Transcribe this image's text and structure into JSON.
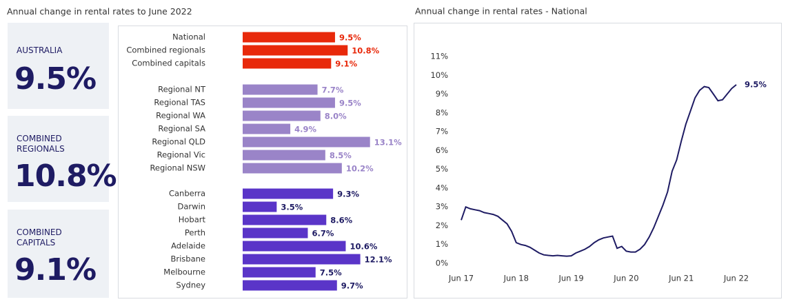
{
  "title": "Annual change in rental rates to June 2022",
  "cards": [
    {
      "label": "AUSTRALIA",
      "value": "9.5%"
    },
    {
      "label": "COMBINED\nREGIONALS",
      "value": "10.8%"
    },
    {
      "label": "COMBINED\nCAPITALS",
      "value": "9.1%"
    }
  ],
  "chart_data": [
    {
      "type": "bar",
      "orientation": "horizontal",
      "groups": [
        {
          "color": "#e8290b",
          "label_color": "#e8290b",
          "categories": [
            "National",
            "Combined regionals",
            "Combined capitals"
          ],
          "values": [
            9.5,
            10.8,
            9.1
          ],
          "value_labels": [
            "9.5%",
            "10.8%",
            "9.1%"
          ]
        },
        {
          "color": "#9a84c8",
          "label_color": "#9a84c8",
          "categories": [
            "Regional NT",
            "Regional TAS",
            "Regional WA",
            "Regional SA",
            "Regional QLD",
            "Regional Vic",
            "Regional NSW"
          ],
          "values": [
            7.7,
            9.5,
            8.0,
            4.9,
            13.1,
            8.5,
            10.2
          ],
          "value_labels": [
            "7.7%",
            "9.5%",
            "8.0%",
            "4.9%",
            "13.1%",
            "8.5%",
            "10.2%"
          ]
        },
        {
          "color": "#5a35c8",
          "label_color": "#1e1b63",
          "categories": [
            "Canberra",
            "Darwin",
            "Hobart",
            "Perth",
            "Adelaide",
            "Brisbane",
            "Melbourne",
            "Sydney"
          ],
          "values": [
            9.3,
            3.5,
            8.6,
            6.7,
            10.6,
            12.1,
            7.5,
            9.7
          ],
          "value_labels": [
            "9.3%",
            "3.5%",
            "8.6%",
            "6.7%",
            "10.6%",
            "12.1%",
            "7.5%",
            "9.7%"
          ]
        }
      ]
    },
    {
      "type": "line",
      "title": "Annual change in rental rates - National",
      "color": "#1e1b63",
      "x": [
        "Jun 17",
        "Jul 17",
        "Aug 17",
        "Sep 17",
        "Oct 17",
        "Nov 17",
        "Dec 17",
        "Jan 18",
        "Feb 18",
        "Mar 18",
        "Apr 18",
        "May 18",
        "Jun 18",
        "Jul 18",
        "Aug 18",
        "Sep 18",
        "Oct 18",
        "Nov 18",
        "Dec 18",
        "Jan 19",
        "Feb 19",
        "Mar 19",
        "Apr 19",
        "May 19",
        "Jun 19",
        "Jul 19",
        "Aug 19",
        "Sep 19",
        "Oct 19",
        "Nov 19",
        "Dec 19",
        "Jan 20",
        "Feb 20",
        "Mar 20",
        "Apr 20",
        "May 20",
        "Jun 20",
        "Jul 20",
        "Aug 20",
        "Sep 20",
        "Oct 20",
        "Nov 20",
        "Dec 20",
        "Jan 21",
        "Feb 21",
        "Mar 21",
        "Apr 21",
        "May 21",
        "Jun 21",
        "Jul 21",
        "Aug 21",
        "Sep 21",
        "Oct 21",
        "Nov 21",
        "Dec 21",
        "Jan 22",
        "Feb 22",
        "Mar 22",
        "Apr 22",
        "May 22",
        "Jun 22"
      ],
      "values": [
        2.3,
        3.0,
        2.9,
        2.85,
        2.8,
        2.7,
        2.65,
        2.6,
        2.5,
        2.3,
        2.1,
        1.7,
        1.1,
        1.0,
        0.95,
        0.85,
        0.7,
        0.55,
        0.45,
        0.42,
        0.4,
        0.42,
        0.4,
        0.38,
        0.4,
        0.55,
        0.65,
        0.75,
        0.9,
        1.1,
        1.25,
        1.35,
        1.4,
        1.45,
        0.8,
        0.9,
        0.65,
        0.6,
        0.6,
        0.75,
        1.0,
        1.4,
        1.9,
        2.5,
        3.1,
        3.8,
        4.9,
        5.5,
        6.5,
        7.4,
        8.1,
        8.8,
        9.2,
        9.4,
        9.35,
        9.0,
        8.65,
        8.7,
        9.0,
        9.3,
        9.5
      ],
      "end_label": "9.5%",
      "xticks": [
        "Jun 17",
        "Jun 18",
        "Jun 19",
        "Jun 20",
        "Jun 21",
        "Jun 22"
      ],
      "ylim": [
        0,
        11
      ],
      "yticks": [
        {
          "value": 0,
          "label": "0%"
        },
        {
          "value": 1,
          "label": "1%"
        },
        {
          "value": 2,
          "label": "2%"
        },
        {
          "value": 3,
          "label": "3%"
        },
        {
          "value": 4,
          "label": "4%"
        },
        {
          "value": 5,
          "label": "5%"
        },
        {
          "value": 6,
          "label": "6%"
        },
        {
          "value": 7,
          "label": "7%"
        },
        {
          "value": 8,
          "label": "8%"
        },
        {
          "value": 9,
          "label": "9%"
        },
        {
          "value": 10,
          "label": "10%"
        },
        {
          "value": 11,
          "label": "11%"
        }
      ]
    }
  ]
}
